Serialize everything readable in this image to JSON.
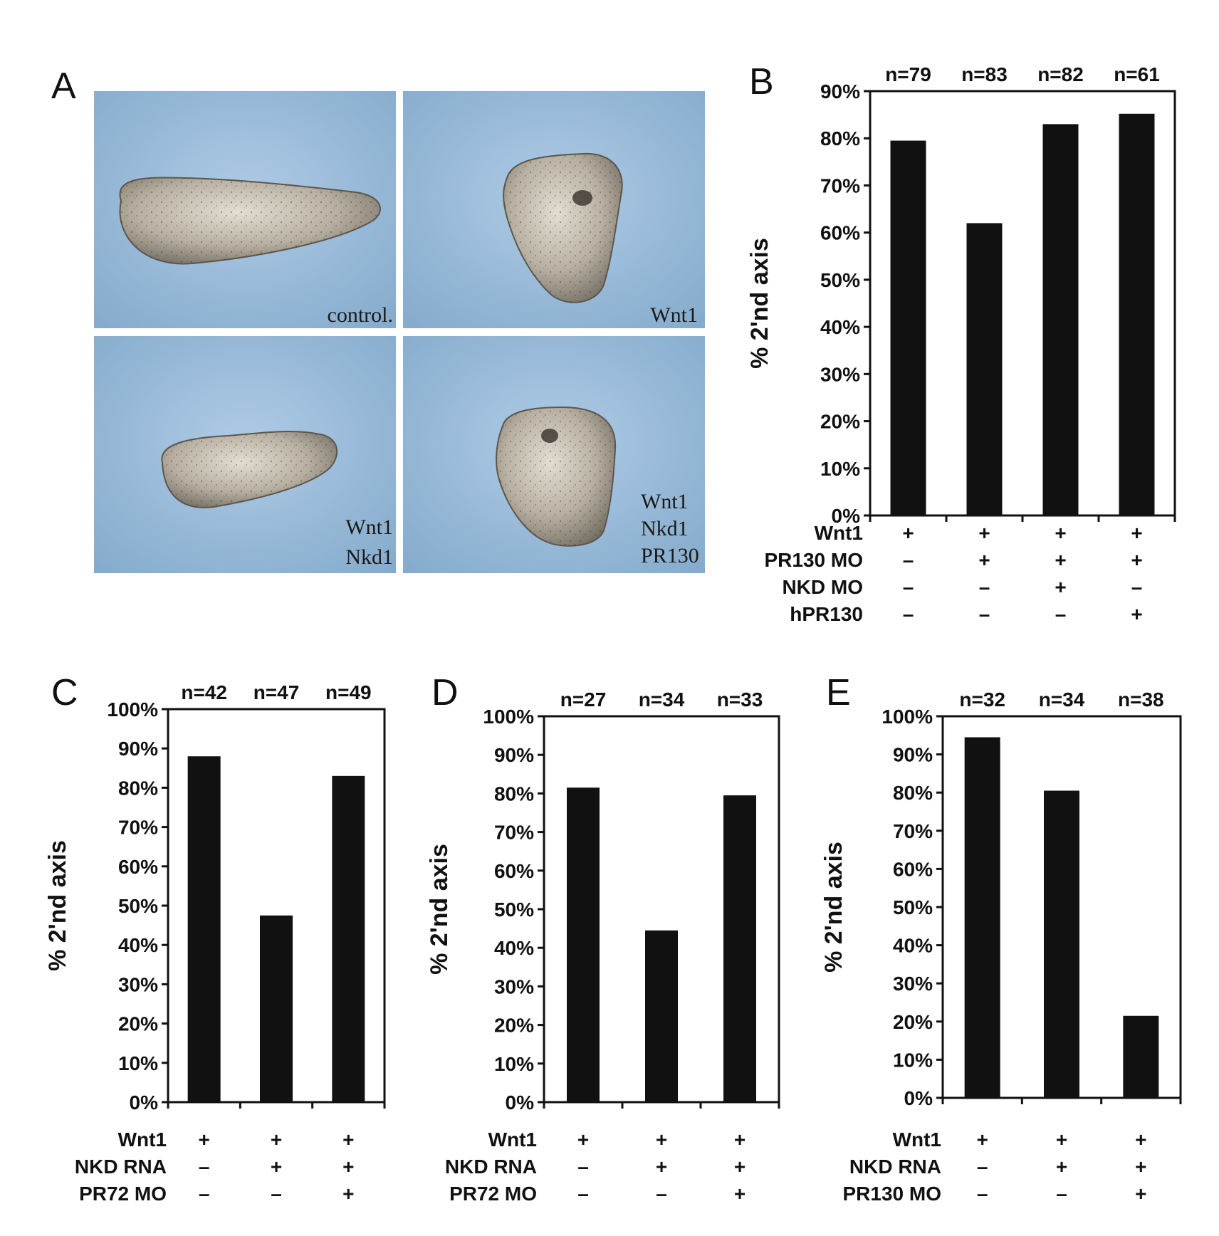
{
  "panel_a": {
    "letter": "A",
    "images": [
      {
        "caption": [
          "control."
        ]
      },
      {
        "caption": [
          "Wnt1"
        ]
      },
      {
        "caption": [
          "Wnt1",
          "Nkd1"
        ]
      },
      {
        "caption": [
          "Wnt1",
          "Nkd1",
          "PR130"
        ]
      }
    ]
  },
  "chart_data": [
    {
      "panel": "B",
      "type": "bar",
      "ylabel": "% 2'nd axis",
      "ylim": [
        0,
        90
      ],
      "yticks": [
        "0%",
        "10%",
        "20%",
        "30%",
        "40%",
        "50%",
        "60%",
        "70%",
        "80%",
        "90%"
      ],
      "n_labels": [
        "n=79",
        "n=83",
        "n=82",
        "n=61"
      ],
      "values": [
        79.5,
        62,
        83,
        85.2
      ],
      "conditions": [
        {
          "name": "Wnt1",
          "marks": [
            "+",
            "+",
            "+",
            "+"
          ]
        },
        {
          "name": "PR130 MO",
          "marks": [
            "–",
            "+",
            "+",
            "+"
          ]
        },
        {
          "name": "NKD MO",
          "marks": [
            "–",
            "–",
            "+",
            "–"
          ]
        },
        {
          "name": "hPR130",
          "marks": [
            "–",
            "–",
            "–",
            "+"
          ]
        }
      ]
    },
    {
      "panel": "C",
      "type": "bar",
      "ylabel": "% 2'nd axis",
      "ylim": [
        0,
        100
      ],
      "yticks": [
        "0%",
        "10%",
        "20%",
        "30%",
        "40%",
        "50%",
        "60%",
        "70%",
        "80%",
        "90%",
        "100%"
      ],
      "n_labels": [
        "n=42",
        "n=47",
        "n=49"
      ],
      "values": [
        88,
        47.5,
        83
      ],
      "conditions": [
        {
          "name": "Wnt1",
          "marks": [
            "+",
            "+",
            "+"
          ]
        },
        {
          "name": "NKD RNA",
          "marks": [
            "–",
            "+",
            "+"
          ]
        },
        {
          "name": "PR72 MO",
          "marks": [
            "–",
            "–",
            "+"
          ]
        }
      ]
    },
    {
      "panel": "D",
      "type": "bar",
      "ylabel": "% 2'nd axis",
      "ylim": [
        0,
        100
      ],
      "yticks": [
        "0%",
        "10%",
        "20%",
        "30%",
        "40%",
        "50%",
        "60%",
        "70%",
        "80%",
        "90%",
        "100%"
      ],
      "n_labels": [
        "n=27",
        "n=34",
        "n=33"
      ],
      "values": [
        81.5,
        44.5,
        79.5
      ],
      "conditions": [
        {
          "name": "Wnt1",
          "marks": [
            "+",
            "+",
            "+"
          ]
        },
        {
          "name": "NKD RNA",
          "marks": [
            "–",
            "+",
            "+"
          ]
        },
        {
          "name": "PR72 MO",
          "marks": [
            "–",
            "–",
            "+"
          ]
        }
      ]
    },
    {
      "panel": "E",
      "type": "bar",
      "ylabel": "% 2'nd axis",
      "ylim": [
        0,
        100
      ],
      "yticks": [
        "0%",
        "10%",
        "20%",
        "30%",
        "40%",
        "50%",
        "60%",
        "70%",
        "80%",
        "90%",
        "100%"
      ],
      "n_labels": [
        "n=32",
        "n=34",
        "n=38"
      ],
      "values": [
        94.5,
        80.5,
        21.5
      ],
      "conditions": [
        {
          "name": "Wnt1",
          "marks": [
            "+",
            "+",
            "+"
          ]
        },
        {
          "name": "NKD RNA",
          "marks": [
            "–",
            "+",
            "+"
          ]
        },
        {
          "name": "PR130 MO",
          "marks": [
            "–",
            "–",
            "+"
          ]
        }
      ]
    }
  ]
}
